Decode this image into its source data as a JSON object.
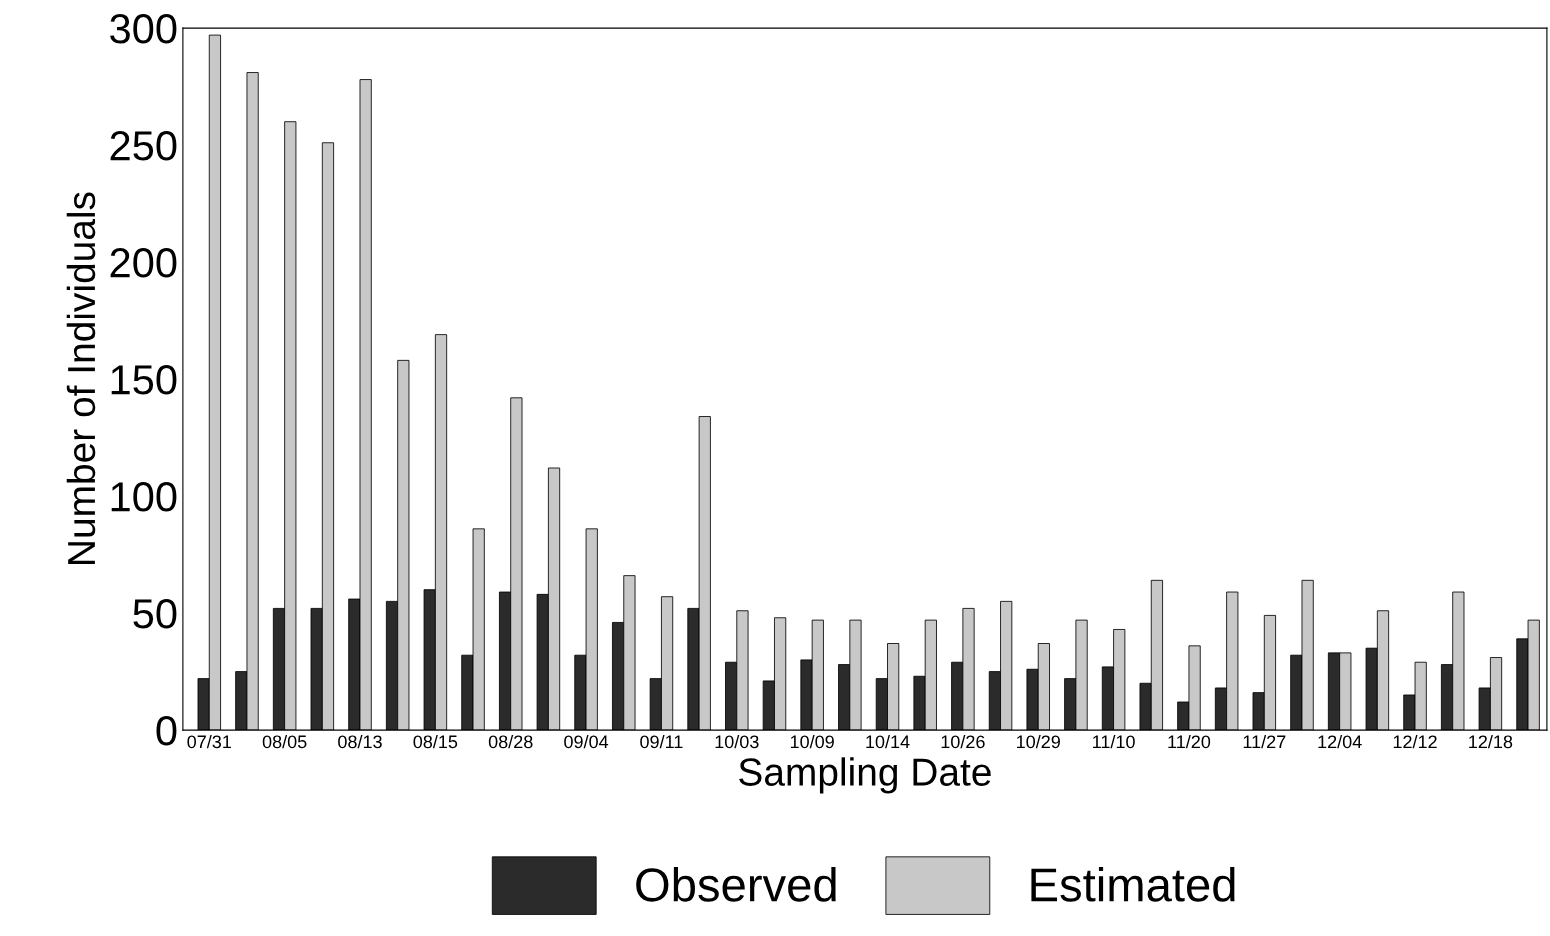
{
  "chart_data": {
    "type": "bar",
    "xlabel": "Sampling Date",
    "ylabel": "Number of Individuals",
    "categories": [
      "07/31",
      null,
      "08/05",
      null,
      "08/13",
      null,
      "08/15",
      null,
      "08/28",
      null,
      "09/04",
      null,
      "09/11",
      null,
      "10/03",
      null,
      "10/09",
      null,
      "10/14",
      null,
      "10/26",
      null,
      "10/29",
      null,
      "11/10",
      null,
      "11/20",
      null,
      "11/27",
      null,
      "12/04",
      null,
      "12/12",
      null,
      "12/18",
      null
    ],
    "series": [
      {
        "name": "Observed",
        "color": "#2b2b2b",
        "values": [
          22,
          25,
          52,
          52,
          56,
          55,
          60,
          32,
          59,
          58,
          32,
          46,
          22,
          52,
          29,
          21,
          30,
          28,
          22,
          23,
          29,
          25,
          26,
          22,
          27,
          20,
          12,
          18,
          16,
          32,
          33,
          35,
          15,
          28,
          18,
          39
        ]
      },
      {
        "name": "Estimated",
        "color": "#c8c8c8",
        "values": [
          297,
          281,
          260,
          251,
          278,
          158,
          169,
          86,
          142,
          112,
          86,
          66,
          57,
          134,
          51,
          48,
          47,
          47,
          37,
          47,
          52,
          55,
          37,
          47,
          43,
          64,
          36,
          59,
          49,
          64,
          33,
          51,
          29,
          59,
          31,
          47
        ]
      }
    ],
    "ylim": [
      0,
      300
    ],
    "yticks": [
      0,
      50,
      100,
      150,
      200,
      250,
      300
    ],
    "grid": false,
    "legend": "bottom"
  }
}
